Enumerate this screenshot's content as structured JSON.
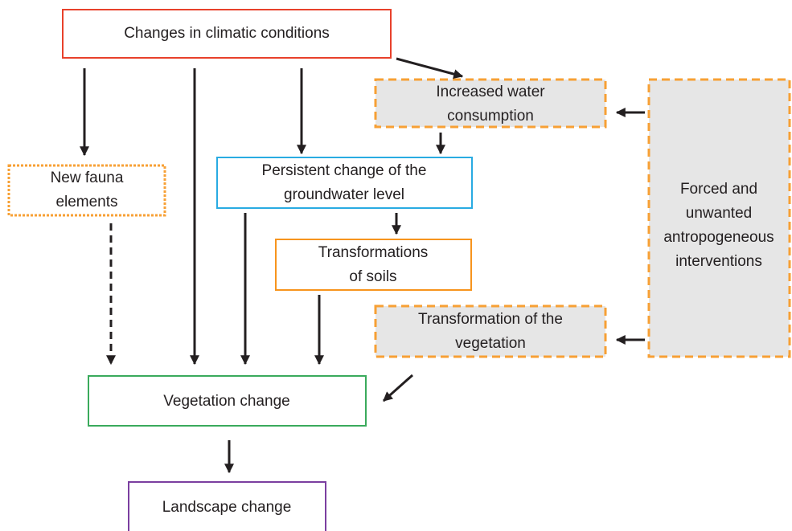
{
  "nodes": [
    {
      "lines": [
        "Changes in climatic conditions"
      ]
    },
    {
      "lines": [
        "Increased water",
        "consumption"
      ]
    },
    {
      "lines": [
        "New fauna",
        "elements"
      ]
    },
    {
      "lines": [
        "Persistent change of the",
        "groundwater level"
      ]
    },
    {
      "lines": [
        "Transformations",
        "of soils"
      ]
    },
    {
      "lines": [
        "Transformation of the",
        "vegetation"
      ]
    },
    {
      "lines": [
        "Forced and",
        "unwanted",
        "antropogeneous",
        "interventions"
      ]
    },
    {
      "lines": [
        "Vegetation change"
      ]
    },
    {
      "lines": [
        "Landscape change"
      ]
    }
  ]
}
